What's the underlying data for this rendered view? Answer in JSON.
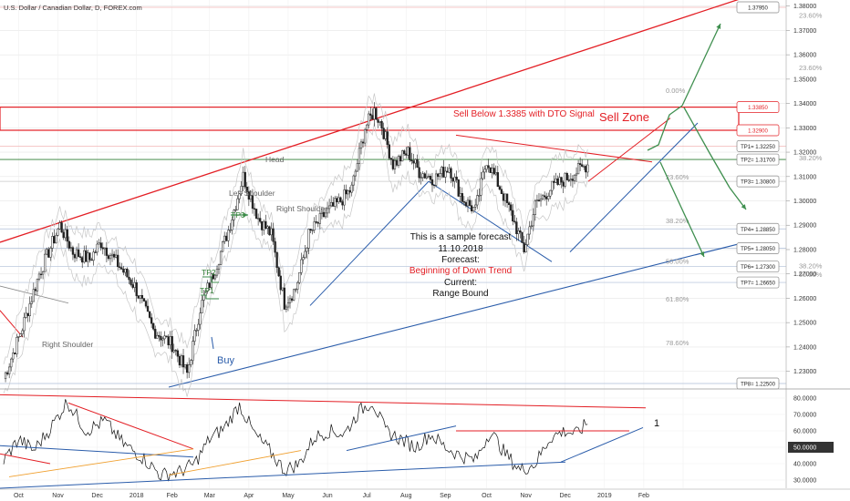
{
  "header": {
    "title": "U.S. Dollar / Canadian Dollar, D, FOREX.com"
  },
  "colors": {
    "red": "#e31e24",
    "green": "#2e7d32",
    "blue": "#2a5caa",
    "grid": "#e6e6e6",
    "pointer_green": "#3f8f4f"
  },
  "chart_data": [
    {
      "type": "candlestick",
      "price_scale": {
        "ylim": [
          1.2235,
          1.3825
        ],
        "ticks": [
          "1.38000",
          "1.37000",
          "1.36000",
          "1.35000",
          "1.34000",
          "1.33000",
          "1.32000",
          "1.31000",
          "1.30000",
          "1.29000",
          "1.28000",
          "1.27000",
          "1.26000",
          "1.25000",
          "1.24000",
          "1.23000"
        ]
      },
      "time_axis": [
        "Oct",
        "Nov",
        "Dec",
        "2018",
        "Feb",
        "Mar",
        "Apr",
        "May",
        "Jun",
        "Jul",
        "Aug",
        "Sep",
        "Oct",
        "Nov",
        "Dec",
        "2019",
        "Feb"
      ],
      "anchor_points": [
        {
          "t": 0,
          "v": 1.227
        },
        {
          "t": 10,
          "v": 1.248
        },
        {
          "t": 19,
          "v": 1.27
        },
        {
          "t": 30,
          "v": 1.29
        },
        {
          "t": 37,
          "v": 1.279
        },
        {
          "t": 46,
          "v": 1.276
        },
        {
          "t": 52,
          "v": 1.283
        },
        {
          "t": 60,
          "v": 1.275
        },
        {
          "t": 70,
          "v": 1.265
        },
        {
          "t": 80,
          "v": 1.247
        },
        {
          "t": 90,
          "v": 1.241
        },
        {
          "t": 98,
          "v": 1.229
        },
        {
          "t": 105,
          "v": 1.256
        },
        {
          "t": 112,
          "v": 1.27
        },
        {
          "t": 120,
          "v": 1.288
        },
        {
          "t": 128,
          "v": 1.31
        },
        {
          "t": 136,
          "v": 1.293
        },
        {
          "t": 143,
          "v": 1.286
        },
        {
          "t": 150,
          "v": 1.258
        },
        {
          "t": 156,
          "v": 1.264
        },
        {
          "t": 163,
          "v": 1.286
        },
        {
          "t": 172,
          "v": 1.295
        },
        {
          "t": 180,
          "v": 1.3
        },
        {
          "t": 186,
          "v": 1.305
        },
        {
          "t": 193,
          "v": 1.33
        },
        {
          "t": 198,
          "v": 1.337
        },
        {
          "t": 202,
          "v": 1.331
        },
        {
          "t": 208,
          "v": 1.315
        },
        {
          "t": 216,
          "v": 1.32
        },
        {
          "t": 222,
          "v": 1.312
        },
        {
          "t": 230,
          "v": 1.309
        },
        {
          "t": 238,
          "v": 1.314
        },
        {
          "t": 245,
          "v": 1.301
        },
        {
          "t": 252,
          "v": 1.296
        },
        {
          "t": 258,
          "v": 1.317
        },
        {
          "t": 266,
          "v": 1.304
        },
        {
          "t": 272,
          "v": 1.293
        },
        {
          "t": 278,
          "v": 1.28
        },
        {
          "t": 284,
          "v": 1.298
        },
        {
          "t": 292,
          "v": 1.305
        },
        {
          "t": 300,
          "v": 1.309
        },
        {
          "t": 306,
          "v": 1.312
        },
        {
          "t": 312,
          "v": 1.315
        }
      ],
      "horizontal_levels": [
        {
          "name": "Sell zone top",
          "value": 1.3385
        },
        {
          "name": "Sell zone bottom",
          "value": 1.329
        },
        {
          "name": "TP1",
          "value": 1.3225
        },
        {
          "name": "TP2",
          "value": 1.317
        },
        {
          "name": "TP3",
          "value": 1.308
        },
        {
          "name": "TP4",
          "value": 1.2885
        },
        {
          "name": "TP5",
          "value": 1.2805
        },
        {
          "name": "TP6",
          "value": 1.273
        },
        {
          "name": "TP7",
          "value": 1.2665
        },
        {
          "name": "TP8",
          "value": 1.225
        },
        {
          "name": "high line",
          "value": 1.3795
        }
      ],
      "fibonacci": [
        {
          "label": "23.60%",
          "value": 1.3745
        },
        {
          "label": "23.60%",
          "value": 1.353
        },
        {
          "label": "0.00%",
          "value": 1.3435
        },
        {
          "label": "38.20%",
          "value": 1.316
        },
        {
          "label": "23.60%",
          "value": 1.308
        },
        {
          "label": "38.20%",
          "value": 1.29
        },
        {
          "label": "50.00%",
          "value": 1.2735
        },
        {
          "label": "38.20%",
          "value": 1.2715
        },
        {
          "label": "50.00%",
          "value": 1.268
        },
        {
          "label": "61.80%",
          "value": 1.258
        },
        {
          "label": "78.60%",
          "value": 1.24
        }
      ],
      "labels": {
        "sell_signal": "Sell Below 1.3385 with DTO Signal",
        "sell_zone": "Sell Zone",
        "head": "Head",
        "left_shoulder": "Left Shoulder",
        "right_shoulder": "Right Shoulder",
        "right_shoulder_2": "Right Shoulder",
        "buy": "Buy",
        "tp1": "TP1",
        "tp2": "TP2",
        "tp3": "TP3",
        "forecast_line1": "This is a sample forecast",
        "forecast_line2": "11.10.2018",
        "forecast_line3": "Forecast:",
        "forecast_line4": "Beginning of Down Trend",
        "forecast_line5": "Current:",
        "forecast_line6": "Range Bound"
      },
      "tags": [
        {
          "text": "1.37950",
          "value": 1.3795,
          "style": "plain"
        },
        {
          "text": "1.33850",
          "value": 1.3385,
          "style": "red"
        },
        {
          "text": "1.32900",
          "value": 1.329,
          "style": "red"
        },
        {
          "text": "TP1= 1.32250",
          "value": 1.3225,
          "style": "plain"
        },
        {
          "text": "TP2= 1.31700",
          "value": 1.317,
          "style": "plain"
        },
        {
          "text": "TP3= 1.30800",
          "value": 1.308,
          "style": "plain"
        },
        {
          "text": "TP4= 1.28850",
          "value": 1.2885,
          "style": "plain"
        },
        {
          "text": "TP5= 1.28050",
          "value": 1.2805,
          "style": "plain"
        },
        {
          "text": "TP6= 1.27300",
          "value": 1.273,
          "style": "plain"
        },
        {
          "text": "TP7= 1.26650",
          "value": 1.2665,
          "style": "plain"
        },
        {
          "text": "TP8= 1.22500",
          "value": 1.225,
          "style": "plain"
        }
      ]
    },
    {
      "type": "line",
      "name": "oscillator",
      "ylim": [
        25,
        85
      ],
      "ticks": [
        "80.0000",
        "70.0000",
        "60.0000",
        "50.0000",
        "40.0000",
        "30.0000"
      ],
      "highlight": {
        "text": "50.0000",
        "value": 50
      },
      "annotation": "1",
      "anchor_points": [
        {
          "t": 0,
          "v": 42
        },
        {
          "t": 8,
          "v": 55
        },
        {
          "t": 16,
          "v": 48
        },
        {
          "t": 24,
          "v": 60
        },
        {
          "t": 34,
          "v": 78
        },
        {
          "t": 44,
          "v": 60
        },
        {
          "t": 54,
          "v": 66
        },
        {
          "t": 64,
          "v": 52
        },
        {
          "t": 74,
          "v": 44
        },
        {
          "t": 84,
          "v": 33
        },
        {
          "t": 94,
          "v": 35
        },
        {
          "t": 102,
          "v": 40
        },
        {
          "t": 110,
          "v": 55
        },
        {
          "t": 118,
          "v": 62
        },
        {
          "t": 126,
          "v": 76
        },
        {
          "t": 134,
          "v": 58
        },
        {
          "t": 142,
          "v": 48
        },
        {
          "t": 150,
          "v": 36
        },
        {
          "t": 158,
          "v": 40
        },
        {
          "t": 166,
          "v": 56
        },
        {
          "t": 174,
          "v": 60
        },
        {
          "t": 182,
          "v": 58
        },
        {
          "t": 190,
          "v": 72
        },
        {
          "t": 197,
          "v": 78
        },
        {
          "t": 204,
          "v": 60
        },
        {
          "t": 212,
          "v": 55
        },
        {
          "t": 220,
          "v": 50
        },
        {
          "t": 228,
          "v": 58
        },
        {
          "t": 236,
          "v": 50
        },
        {
          "t": 244,
          "v": 45
        },
        {
          "t": 252,
          "v": 42
        },
        {
          "t": 260,
          "v": 60
        },
        {
          "t": 268,
          "v": 46
        },
        {
          "t": 276,
          "v": 36
        },
        {
          "t": 284,
          "v": 40
        },
        {
          "t": 292,
          "v": 56
        },
        {
          "t": 300,
          "v": 60
        },
        {
          "t": 306,
          "v": 58
        },
        {
          "t": 312,
          "v": 65
        }
      ]
    }
  ]
}
